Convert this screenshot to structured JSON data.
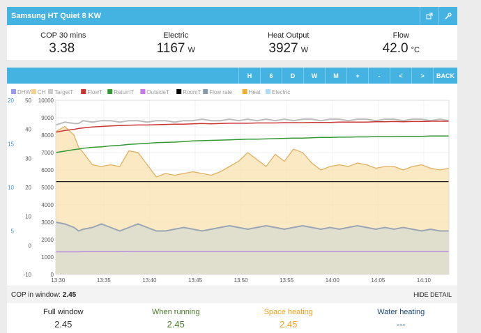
{
  "header": {
    "title": "Samsung HT Quiet 8 KW",
    "export_icon": "export-icon",
    "settings_icon": "wrench-icon"
  },
  "stats": [
    {
      "label": "COP 30 mins",
      "value": "3.38",
      "unit": ""
    },
    {
      "label": "Electric",
      "value": "1167",
      "unit": "W"
    },
    {
      "label": "Heat Output",
      "value": "3927",
      "unit": "W"
    },
    {
      "label": "Flow",
      "value": "42.0",
      "unit": "°C"
    }
  ],
  "controls": [
    "H",
    "6",
    "D",
    "W",
    "M",
    "+",
    "-",
    "<",
    ">",
    "BACK"
  ],
  "chart_data": {
    "type": "line",
    "legend": [
      "DHW",
      "CH",
      "TargetT",
      "FlowT",
      "ReturnT",
      "OutsideT",
      "RoomT",
      "Flow rate",
      "Heat",
      "Electric"
    ],
    "colors": {
      "DHW": "#9999ee",
      "CH": "#f5d08a",
      "TargetT": "#cccccc",
      "FlowT": "#cc3333",
      "ReturnT": "#339933",
      "OutsideT": "#cc77ee",
      "RoomT": "#000000",
      "Flow rate": "#8899aa",
      "Heat": "#f0b030",
      "Electric": "#aaddff"
    },
    "x_ticks": [
      "13:30",
      "13:35",
      "13:40",
      "13:45",
      "13:50",
      "13:55",
      "14:00",
      "14:05",
      "14:10"
    ],
    "y_left_ticks": [
      "-10",
      "0",
      "10",
      "20",
      "30",
      "40",
      "50"
    ],
    "y_left_range": [
      -10,
      50
    ],
    "y_flow_ticks": [
      "5",
      "10",
      "15",
      "20"
    ],
    "y_power_ticks": [
      "0",
      "1000",
      "2000",
      "3000",
      "4000",
      "5000",
      "6000",
      "7000",
      "8000",
      "9000",
      "10000"
    ],
    "y_power_range": [
      0,
      10000
    ],
    "x": [
      0,
      2,
      4,
      5,
      6,
      8,
      10,
      12,
      14,
      16,
      18,
      20,
      22,
      24,
      26,
      28,
      30,
      32,
      34,
      36,
      38,
      40,
      42,
      44,
      46,
      48,
      50,
      52,
      54,
      56,
      58,
      60,
      62,
      64,
      66,
      68,
      70,
      72,
      74,
      76,
      78,
      80,
      82,
      84,
      86
    ],
    "series": [
      {
        "name": "Heat",
        "values": [
          8200,
          8500,
          8000,
          7300,
          7000,
          6300,
          6200,
          6300,
          6200,
          7100,
          7000,
          6300,
          5600,
          5800,
          5700,
          5800,
          5900,
          5800,
          5700,
          5900,
          6200,
          6500,
          7000,
          6600,
          6200,
          6900,
          6500,
          7200,
          7000,
          6400,
          6000,
          6200,
          6300,
          6200,
          6400,
          6300,
          6100,
          6200,
          6200,
          6000,
          6200,
          6300,
          6100,
          6000,
          6100
        ]
      },
      {
        "name": "Electric",
        "values": [
          3000,
          2900,
          2700,
          2500,
          2600,
          2700,
          2900,
          2700,
          2500,
          2700,
          2900,
          2700,
          2500,
          2500,
          2600,
          2700,
          2600,
          2500,
          2600,
          2700,
          2800,
          2700,
          2600,
          2700,
          2800,
          2700,
          2600,
          2700,
          2800,
          2700,
          2600,
          2700,
          2600,
          2700,
          2800,
          2700,
          2600,
          2700,
          2600,
          2700,
          2600,
          2500,
          2600,
          2500,
          2500
        ]
      },
      {
        "name": "FlowT",
        "values": [
          39.0,
          39.6,
          40.0,
          40.3,
          40.5,
          40.8,
          41.0,
          41.2,
          41.3,
          41.4,
          41.5,
          41.5,
          41.6,
          41.7,
          41.8,
          41.8,
          41.9,
          42.0,
          41.9,
          42.0,
          42.1,
          42.1,
          42.1,
          42.2,
          42.2,
          42.2,
          42.3,
          42.3,
          42.3,
          42.4,
          42.4,
          42.4,
          42.5,
          42.5,
          42.5,
          42.5,
          42.6,
          42.6,
          42.7,
          42.6,
          42.7,
          42.7,
          42.8,
          42.8,
          42.8
        ]
      },
      {
        "name": "TargetT",
        "values": [
          41.5,
          42.5,
          42.0,
          42.0,
          43.0,
          42.5,
          43.0,
          43.0,
          42.5,
          43.0,
          43.0,
          42.5,
          43.0,
          43.0,
          42.5,
          43.0,
          43.0,
          43.5,
          43.0,
          43.0,
          43.5,
          43.0,
          43.5,
          43.0,
          43.5,
          43.0,
          43.5,
          43.0,
          43.5,
          43.5,
          43.0,
          43.5,
          43.5,
          43.0,
          43.5,
          43.5,
          43.0,
          43.5,
          43.5,
          43.0,
          43.5,
          43.5,
          43.0,
          43.5,
          43.0
        ]
      },
      {
        "name": "ReturnT",
        "values": [
          32.0,
          32.5,
          33.0,
          33.2,
          33.5,
          33.8,
          34.0,
          34.3,
          34.5,
          34.8,
          35.0,
          35.2,
          35.4,
          35.5,
          35.6,
          35.8,
          36.0,
          36.1,
          36.2,
          36.3,
          36.4,
          36.5,
          36.6,
          36.6,
          36.7,
          36.8,
          36.9,
          37.0,
          37.0,
          37.1,
          37.2,
          37.2,
          37.3,
          37.3,
          37.4,
          37.4,
          37.5,
          37.5,
          37.5,
          37.6,
          37.6,
          37.6,
          37.7,
          37.7,
          37.7
        ]
      },
      {
        "name": "RoomT",
        "values": [
          22.0,
          22.0,
          22.0,
          22.0,
          22.0,
          22.0,
          22.0,
          22.0,
          22.0,
          22.0,
          22.0,
          22.0,
          22.0,
          22.0,
          22.0,
          22.0,
          22.0,
          22.0,
          22.0,
          22.0,
          22.0,
          22.0,
          22.0,
          22.0,
          22.0,
          22.0,
          22.0,
          22.0,
          22.0,
          22.0,
          22.0,
          22.0,
          22.0,
          22.0,
          22.0,
          22.0,
          22.0,
          22.0,
          22.0,
          22.0,
          22.0,
          22.0,
          22.0,
          22.0,
          22.0
        ]
      },
      {
        "name": "OutsideT",
        "values": [
          -2.2,
          -2.2,
          -2.2,
          -2.2,
          -2.1,
          -2.1,
          -2.1,
          -2.1,
          -2.1,
          -2.0,
          -2.0,
          -2.0,
          -2.0,
          -2.0,
          -2.0,
          -2.0,
          -2.0,
          -2.0,
          -2.0,
          -2.0,
          -2.0,
          -2.0,
          -2.0,
          -2.0,
          -2.0,
          -2.0,
          -2.0,
          -2.0,
          -2.0,
          -2.0,
          -2.0,
          -2.0,
          -2.0,
          -2.0,
          -2.0,
          -2.0,
          -2.0,
          -2.0,
          -2.0,
          -2.0,
          -2.0,
          -2.0,
          -2.0,
          -2.0,
          -2.0
        ]
      }
    ]
  },
  "cop_window": {
    "label": "COP in window:",
    "value": "2.45",
    "hide_label": "HIDE DETAIL"
  },
  "summary": [
    {
      "label": "Full window",
      "value": "2.45",
      "color": "#333333"
    },
    {
      "label": "When running",
      "value": "2.45",
      "color": "#4a7a2a"
    },
    {
      "label": "Space heating",
      "value": "2.45",
      "color": "#f0a020"
    },
    {
      "label": "Water heating",
      "value": "---",
      "color": "#1a4a7a"
    }
  ]
}
